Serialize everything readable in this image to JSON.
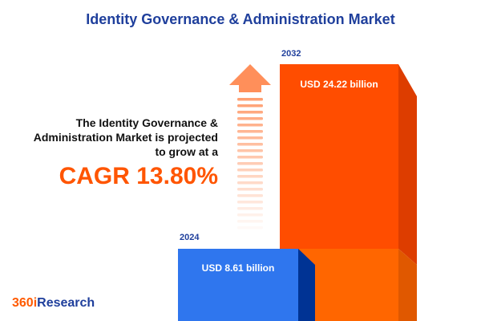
{
  "title": "Identity Governance & Administration Market",
  "description": {
    "line1": "The Identity Governance &",
    "line2": "Administration Market is projected",
    "line3": "to grow at a"
  },
  "cagr": "CAGR 13.80%",
  "logo": {
    "part1": "360i",
    "part2": "Research"
  },
  "colors": {
    "title": "#1f3f9c",
    "accent": "#ff5500",
    "bar_2024": "#2f76ee",
    "bar_2032": "#ff4d00"
  },
  "chart_data": {
    "type": "bar",
    "categories": [
      "2024",
      "2032"
    ],
    "values": [
      8.61,
      24.22
    ],
    "value_labels": [
      "USD 8.61 billion",
      "USD 24.22 billion"
    ],
    "unit": "USD billion"
  }
}
